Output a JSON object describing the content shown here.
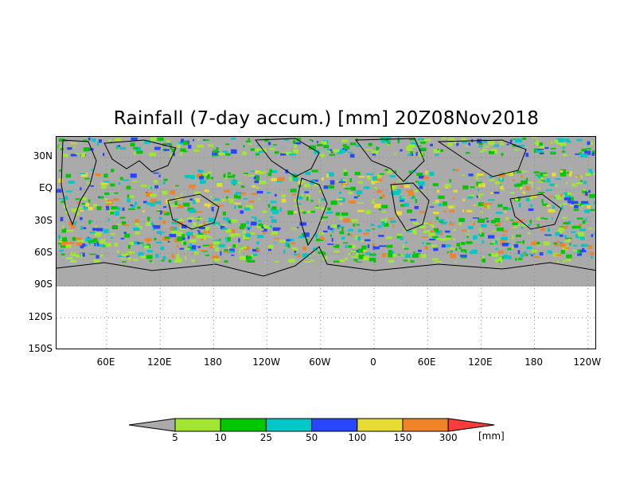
{
  "title": "Rainfall (7-day accum.) [mm] 20Z08Nov2018",
  "map": {
    "lat_labels": [
      "30N",
      "EQ",
      "30S",
      "60S",
      "90S",
      "120S",
      "150S"
    ],
    "lon_labels": [
      "60E",
      "120E",
      "180",
      "120W",
      "60W",
      "0",
      "60E",
      "120E",
      "180",
      "120W"
    ],
    "background_color": "#aaaaaa",
    "grid_style": "dotted"
  },
  "colorbar": {
    "unit_label": "[mm]",
    "thresholds": [
      "5",
      "10",
      "25",
      "50",
      "100",
      "150",
      "300"
    ],
    "colors": [
      "#aaaaaa",
      "#a0e632",
      "#00c800",
      "#00c8c8",
      "#2846ff",
      "#e6dc32",
      "#f08228",
      "#fa3c3c"
    ]
  }
}
